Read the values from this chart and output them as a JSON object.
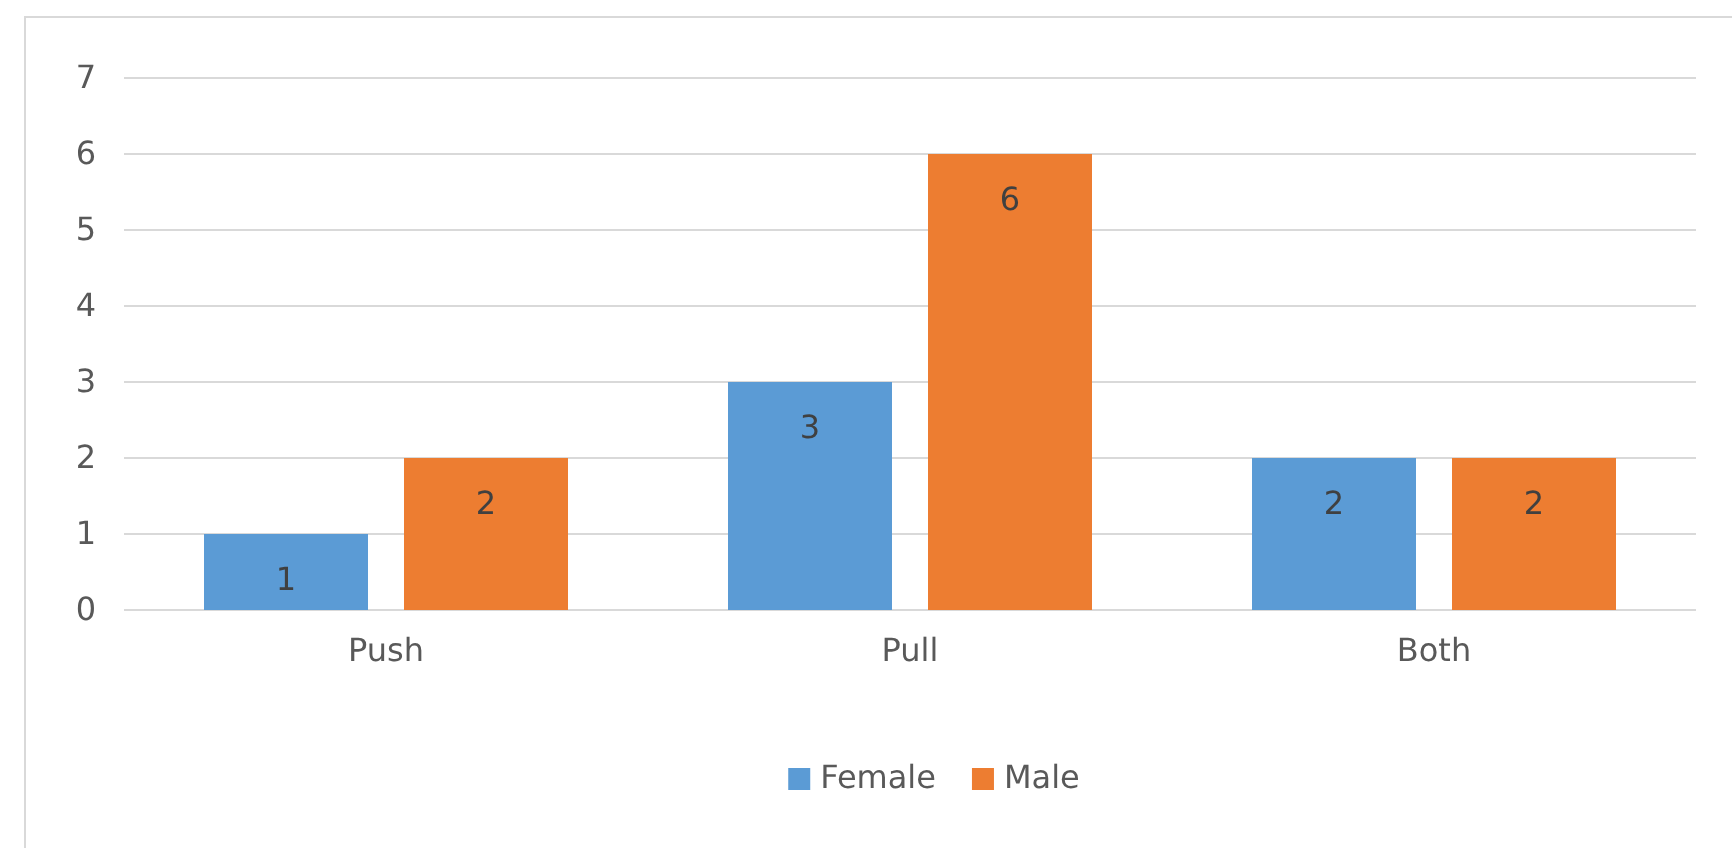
{
  "chart_data": {
    "type": "bar",
    "categories": [
      "Push",
      "Pull",
      "Both"
    ],
    "series": [
      {
        "name": "Female",
        "color": "#5b9bd5",
        "values": [
          1,
          3,
          2
        ]
      },
      {
        "name": "Male",
        "color": "#ed7d31",
        "values": [
          2,
          6,
          2
        ]
      }
    ],
    "ylim": [
      0,
      7
    ],
    "yticks": [
      0,
      1,
      2,
      3,
      4,
      5,
      6,
      7
    ],
    "grid": "y",
    "legend": "bottom",
    "data_labels": true
  }
}
